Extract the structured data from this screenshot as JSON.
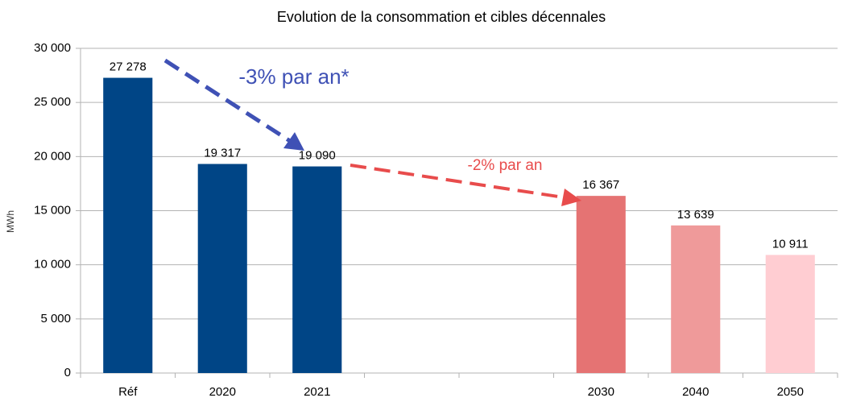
{
  "chart_data": {
    "type": "bar",
    "title": "Evolution de la consommation et cibles décennales",
    "y_label": "MWh",
    "categories": [
      "Réf",
      "2020",
      "2021",
      null,
      null,
      "2030",
      "2040",
      "2050"
    ],
    "values": [
      27278,
      19317,
      19090,
      null,
      null,
      16367,
      13639,
      10911
    ],
    "value_labels": [
      "27 278",
      "19 317",
      "19 090",
      null,
      null,
      "16 367",
      "13 639",
      "10 911"
    ],
    "colors": [
      "#004586",
      "#004586",
      "#004586",
      null,
      null,
      "#e57373",
      "#ef9a9a",
      "#ffcdd2"
    ],
    "ylim": [
      0,
      30000
    ],
    "yticks": [
      0,
      {
        "value": 5000,
        "label": "5 000"
      },
      {
        "value": 10000,
        "label": "10 000"
      },
      {
        "value": 15000,
        "label": "15 000"
      },
      {
        "value": 20000,
        "label": "20 000"
      },
      {
        "value": 25000,
        "label": "25 000"
      },
      {
        "value": 30000,
        "label": "30 000"
      }
    ],
    "grid": true,
    "annotations": [
      "-3% par an*",
      "-2% par an"
    ]
  }
}
